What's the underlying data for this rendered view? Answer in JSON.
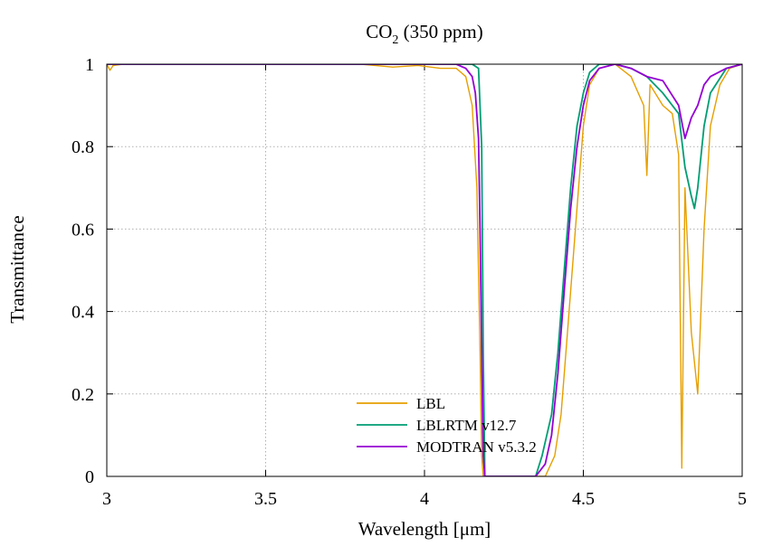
{
  "chart_data": {
    "type": "line",
    "title": "CO",
    "title_subscript": "2",
    "title_suffix": " (350 ppm)",
    "xlabel": "Wavelength  [μm]",
    "ylabel": "Transmittance",
    "xlim": [
      3,
      5
    ],
    "ylim": [
      0,
      1
    ],
    "x_ticks": [
      "3",
      "3.5",
      "4",
      "4.5",
      "5"
    ],
    "y_ticks": [
      "0",
      "0.2",
      "0.4",
      "0.6",
      "0.8",
      "1"
    ],
    "grid": true,
    "legend_position": "bottom-center",
    "series": [
      {
        "name": "LBL",
        "color": "#e69f00",
        "x": [
          3.0,
          3.01,
          3.02,
          3.05,
          3.2,
          3.5,
          3.8,
          3.9,
          3.98,
          4.05,
          4.1,
          4.13,
          4.15,
          4.165,
          4.175,
          4.18,
          4.185,
          4.19,
          4.2,
          4.22,
          4.24,
          4.26,
          4.28,
          4.3,
          4.33,
          4.35,
          4.38,
          4.41,
          4.43,
          4.45,
          4.47,
          4.49,
          4.5,
          4.52,
          4.55,
          4.6,
          4.65,
          4.69,
          4.7,
          4.71,
          4.75,
          4.78,
          4.8,
          4.81,
          4.82,
          4.84,
          4.86,
          4.88,
          4.9,
          4.93,
          4.96,
          5.0
        ],
        "y": [
          1.0,
          0.985,
          0.997,
          1.0,
          1.0,
          1.0,
          1.0,
          0.993,
          0.997,
          0.99,
          0.99,
          0.97,
          0.9,
          0.7,
          0.3,
          0.05,
          0.0,
          0.0,
          0.0,
          0.0,
          0.0,
          0.0,
          0.0,
          0.0,
          0.0,
          0.0,
          0.0,
          0.05,
          0.15,
          0.35,
          0.55,
          0.75,
          0.85,
          0.95,
          0.99,
          1.0,
          0.97,
          0.9,
          0.73,
          0.95,
          0.9,
          0.88,
          0.78,
          0.02,
          0.7,
          0.35,
          0.2,
          0.6,
          0.85,
          0.95,
          0.99,
          1.0
        ]
      },
      {
        "name": "LBLRTM v12.7",
        "color": "#009e73",
        "x": [
          3.0,
          3.2,
          3.5,
          3.8,
          4.0,
          4.1,
          4.15,
          4.17,
          4.18,
          4.185,
          4.19,
          4.35,
          4.37,
          4.4,
          4.42,
          4.44,
          4.46,
          4.48,
          4.5,
          4.52,
          4.55,
          4.6,
          4.65,
          4.7,
          4.75,
          4.8,
          4.82,
          4.84,
          4.85,
          4.86,
          4.88,
          4.9,
          4.95,
          5.0
        ],
        "y": [
          1.0,
          1.0,
          1.0,
          1.0,
          1.0,
          1.0,
          1.0,
          0.99,
          0.8,
          0.3,
          0.0,
          0.0,
          0.05,
          0.15,
          0.3,
          0.5,
          0.7,
          0.85,
          0.93,
          0.98,
          1.0,
          1.0,
          0.99,
          0.97,
          0.93,
          0.88,
          0.75,
          0.68,
          0.65,
          0.7,
          0.85,
          0.93,
          0.99,
          1.0
        ]
      },
      {
        "name": "MODTRAN v5.3.2",
        "color": "#9400d3",
        "x": [
          3.0,
          3.2,
          3.5,
          3.8,
          4.0,
          4.1,
          4.13,
          4.15,
          4.16,
          4.17,
          4.175,
          4.18,
          4.185,
          4.19,
          4.35,
          4.38,
          4.4,
          4.42,
          4.44,
          4.46,
          4.48,
          4.5,
          4.52,
          4.55,
          4.6,
          4.65,
          4.7,
          4.75,
          4.8,
          4.82,
          4.84,
          4.86,
          4.88,
          4.9,
          4.95,
          5.0
        ],
        "y": [
          1.0,
          1.0,
          1.0,
          1.0,
          1.0,
          1.0,
          0.99,
          0.97,
          0.93,
          0.82,
          0.6,
          0.3,
          0.05,
          0.0,
          0.0,
          0.03,
          0.1,
          0.25,
          0.45,
          0.65,
          0.8,
          0.9,
          0.96,
          0.99,
          1.0,
          0.99,
          0.97,
          0.96,
          0.9,
          0.82,
          0.87,
          0.9,
          0.95,
          0.97,
          0.99,
          1.0
        ]
      }
    ]
  }
}
